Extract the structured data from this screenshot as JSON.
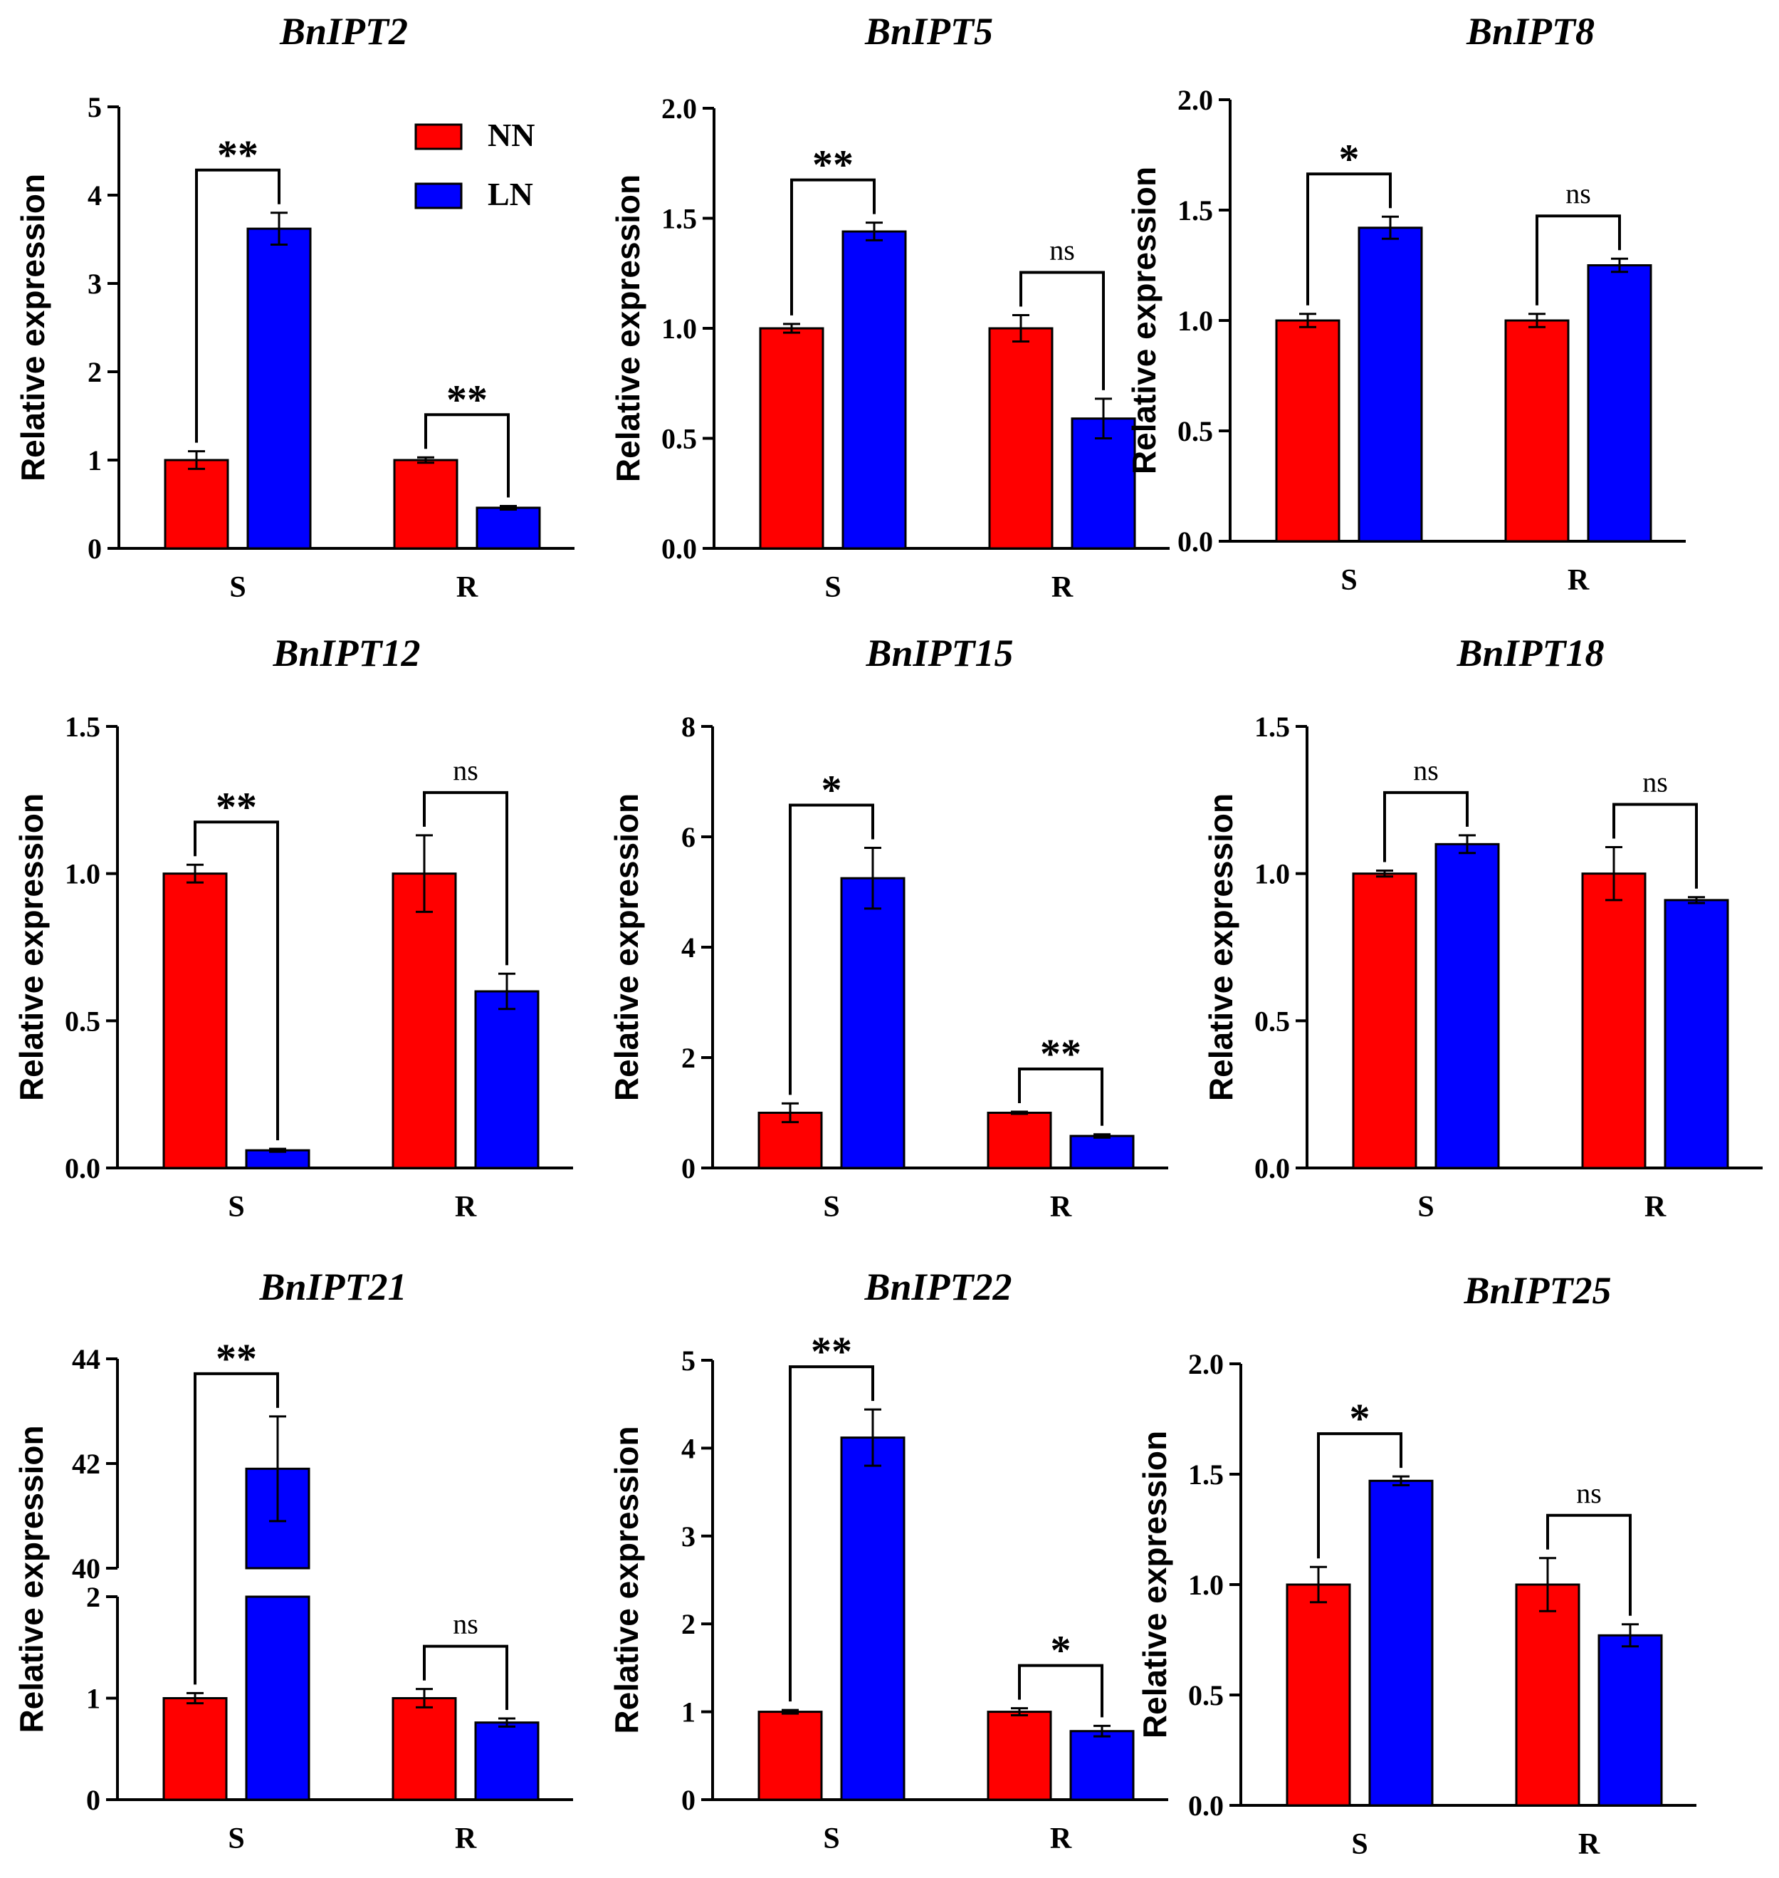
{
  "colors": {
    "NN": "#ff0000",
    "LN": "#0000ff",
    "axis": "#000000"
  },
  "legend": [
    {
      "key": "NN",
      "label": "NN",
      "color": "#ff0000"
    },
    {
      "key": "LN",
      "label": "LN",
      "color": "#0000ff"
    }
  ],
  "chart_data": [
    {
      "type": "bar",
      "title": "BnIPT2",
      "ylabel": "Relative expression",
      "xlabel": "",
      "categories": [
        "S",
        "R"
      ],
      "ylim": [
        0,
        5
      ],
      "yticks": [
        0,
        1,
        2,
        3,
        4,
        5
      ],
      "ytick_labels": [
        "0",
        "1",
        "2",
        "3",
        "4",
        "5"
      ],
      "series": [
        {
          "name": "NN",
          "values": [
            1.0,
            1.0
          ],
          "errors": [
            0.1,
            0.03
          ]
        },
        {
          "name": "LN",
          "values": [
            3.62,
            0.46
          ],
          "errors": [
            0.18,
            0.02
          ]
        }
      ],
      "significance": [
        "**",
        "**"
      ]
    },
    {
      "type": "bar",
      "title": "BnIPT5",
      "ylabel": "Relative expression",
      "xlabel": "",
      "categories": [
        "S",
        "R"
      ],
      "ylim": [
        0,
        2.0
      ],
      "yticks": [
        0,
        0.5,
        1.0,
        1.5,
        2.0
      ],
      "ytick_labels": [
        "0.0",
        "0.5",
        "1.0",
        "1.5",
        "2.0"
      ],
      "series": [
        {
          "name": "NN",
          "values": [
            1.0,
            1.0
          ],
          "errors": [
            0.02,
            0.06
          ]
        },
        {
          "name": "LN",
          "values": [
            1.44,
            0.59
          ],
          "errors": [
            0.04,
            0.09
          ]
        }
      ],
      "significance": [
        "**",
        "ns"
      ]
    },
    {
      "type": "bar",
      "title": "BnIPT8",
      "ylabel": "Relative expression",
      "xlabel": "",
      "categories": [
        "S",
        "R"
      ],
      "ylim": [
        0,
        2.0
      ],
      "yticks": [
        0,
        0.5,
        1.0,
        1.5,
        2.0
      ],
      "ytick_labels": [
        "0.0",
        "0.5",
        "1.0",
        "1.5",
        "2.0"
      ],
      "series": [
        {
          "name": "NN",
          "values": [
            1.0,
            1.0
          ],
          "errors": [
            0.03,
            0.03
          ]
        },
        {
          "name": "LN",
          "values": [
            1.42,
            1.25
          ],
          "errors": [
            0.05,
            0.03
          ]
        }
      ],
      "significance": [
        "*",
        "ns"
      ]
    },
    {
      "type": "bar",
      "title": "BnIPT12",
      "ylabel": "Relative expression",
      "xlabel": "",
      "categories": [
        "S",
        "R"
      ],
      "ylim": [
        0,
        1.5
      ],
      "yticks": [
        0,
        0.5,
        1.0,
        1.5
      ],
      "ytick_labels": [
        "0.0",
        "0.5",
        "1.0",
        "1.5"
      ],
      "series": [
        {
          "name": "NN",
          "values": [
            1.0,
            1.0
          ],
          "errors": [
            0.03,
            0.13
          ]
        },
        {
          "name": "LN",
          "values": [
            0.06,
            0.6
          ],
          "errors": [
            0.005,
            0.06
          ]
        }
      ],
      "significance": [
        "**",
        "ns"
      ]
    },
    {
      "type": "bar",
      "title": "BnIPT15",
      "ylabel": "Relative expression",
      "xlabel": "",
      "categories": [
        "S",
        "R"
      ],
      "ylim": [
        0,
        8
      ],
      "yticks": [
        0,
        2,
        4,
        6,
        8
      ],
      "ytick_labels": [
        "0",
        "2",
        "4",
        "6",
        "8"
      ],
      "series": [
        {
          "name": "NN",
          "values": [
            1.0,
            1.0
          ],
          "errors": [
            0.17,
            0.02
          ]
        },
        {
          "name": "LN",
          "values": [
            5.25,
            0.58
          ],
          "errors": [
            0.55,
            0.03
          ]
        }
      ],
      "significance": [
        "*",
        "**"
      ]
    },
    {
      "type": "bar",
      "title": "BnIPT18",
      "ylabel": "Relative expression",
      "xlabel": "",
      "categories": [
        "S",
        "R"
      ],
      "ylim": [
        0,
        1.5
      ],
      "yticks": [
        0,
        0.5,
        1.0,
        1.5
      ],
      "ytick_labels": [
        "0.0",
        "0.5",
        "1.0",
        "1.5"
      ],
      "series": [
        {
          "name": "NN",
          "values": [
            1.0,
            1.0
          ],
          "errors": [
            0.01,
            0.09
          ]
        },
        {
          "name": "LN",
          "values": [
            1.1,
            0.91
          ],
          "errors": [
            0.03,
            0.01
          ]
        }
      ],
      "significance": [
        "ns",
        "ns"
      ]
    },
    {
      "type": "bar",
      "title": "BnIPT21",
      "ylabel": "Relative expression",
      "xlabel": "",
      "categories": [
        "S",
        "R"
      ],
      "ylim": [
        0,
        44
      ],
      "broken_axis": {
        "lower": [
          0,
          2
        ],
        "upper": [
          40,
          44
        ]
      },
      "yticks": [
        0,
        1,
        2,
        40,
        42,
        44
      ],
      "ytick_labels": [
        "0",
        "1",
        "2",
        "40",
        "42",
        "44"
      ],
      "series": [
        {
          "name": "NN",
          "values": [
            1.0,
            1.0
          ],
          "errors": [
            0.05,
            0.09
          ]
        },
        {
          "name": "LN",
          "values": [
            41.9,
            0.76
          ],
          "errors": [
            1.0,
            0.04
          ]
        }
      ],
      "significance": [
        "**",
        "ns"
      ]
    },
    {
      "type": "bar",
      "title": "BnIPT22",
      "ylabel": "Relative expression",
      "xlabel": "",
      "categories": [
        "S",
        "R"
      ],
      "ylim": [
        0,
        5
      ],
      "yticks": [
        0,
        1,
        2,
        3,
        4,
        5
      ],
      "ytick_labels": [
        "0",
        "1",
        "2",
        "3",
        "4",
        "5"
      ],
      "series": [
        {
          "name": "NN",
          "values": [
            1.0,
            1.0
          ],
          "errors": [
            0.02,
            0.04
          ]
        },
        {
          "name": "LN",
          "values": [
            4.12,
            0.78
          ],
          "errors": [
            0.32,
            0.06
          ]
        }
      ],
      "significance": [
        "**",
        "*"
      ]
    },
    {
      "type": "bar",
      "title": "BnIPT25",
      "ylabel": "Relative expression",
      "xlabel": "",
      "categories": [
        "S",
        "R"
      ],
      "ylim": [
        0,
        2.0
      ],
      "yticks": [
        0,
        0.5,
        1.0,
        1.5,
        2.0
      ],
      "ytick_labels": [
        "0.0",
        "0.5",
        "1.0",
        "1.5",
        "2.0"
      ],
      "series": [
        {
          "name": "NN",
          "values": [
            1.0,
            1.0
          ],
          "errors": [
            0.08,
            0.12
          ]
        },
        {
          "name": "LN",
          "values": [
            1.47,
            0.77
          ],
          "errors": [
            0.02,
            0.05
          ]
        }
      ],
      "significance": [
        "*",
        "ns"
      ]
    }
  ]
}
